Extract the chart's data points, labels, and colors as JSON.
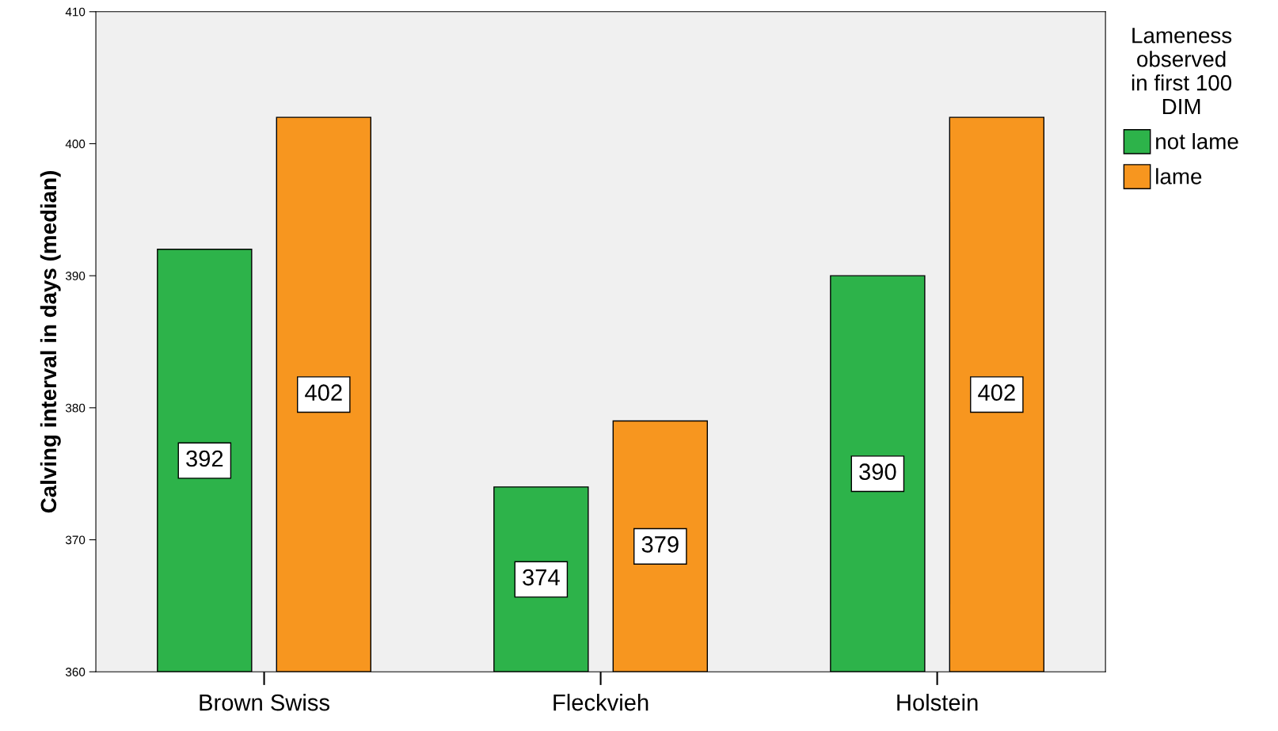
{
  "chart_data": {
    "type": "bar",
    "ylabel": "Calving interval in days (median)",
    "legend_title": "Lameness\nobserved\nin first 100\nDIM",
    "categories": [
      "Brown Swiss",
      "Fleckvieh",
      "Holstein"
    ],
    "series": [
      {
        "name": "not lame",
        "color": "#2db34a",
        "values": [
          392,
          374,
          390
        ]
      },
      {
        "name": "lame",
        "color": "#f7961f",
        "values": [
          402,
          379,
          402
        ]
      }
    ],
    "ylim": [
      360,
      410
    ],
    "yticks": [
      360,
      370,
      380,
      390,
      400,
      410
    ],
    "data_labels": true,
    "grid": false,
    "legend": "right"
  }
}
